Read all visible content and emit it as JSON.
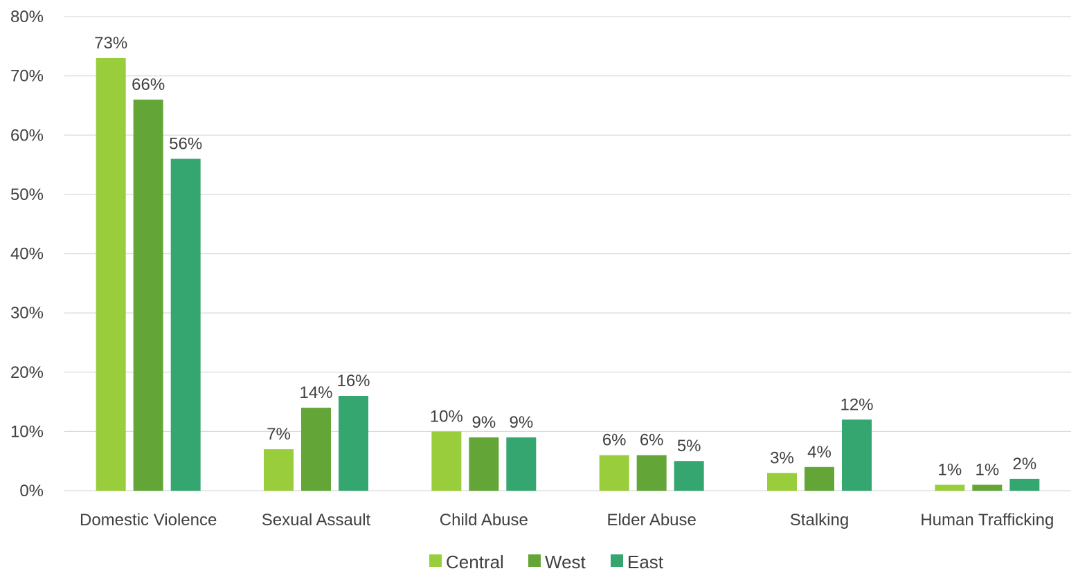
{
  "chart_data": {
    "type": "bar",
    "categories": [
      "Domestic Violence",
      "Sexual Assault",
      "Child Abuse",
      "Elder Abuse",
      "Stalking",
      "Human Trafficking"
    ],
    "series": [
      {
        "name": "Central",
        "color": "#9acd3c",
        "values": [
          73,
          7,
          10,
          6,
          3,
          1
        ],
        "labels": [
          "73%",
          "7%",
          "10%",
          "6%",
          "3%",
          "1%"
        ]
      },
      {
        "name": "West",
        "color": "#63a637",
        "values": [
          66,
          14,
          9,
          6,
          4,
          1
        ],
        "labels": [
          "66%",
          "14%",
          "9%",
          "6%",
          "4%",
          "1%"
        ]
      },
      {
        "name": "East",
        "color": "#35a66f",
        "values": [
          56,
          16,
          9,
          5,
          12,
          2
        ],
        "labels": [
          "56%",
          "16%",
          "9%",
          "5%",
          "12%",
          "2%"
        ]
      }
    ],
    "yticks": [
      "0%",
      "10%",
      "20%",
      "30%",
      "40%",
      "50%",
      "60%",
      "70%",
      "80%"
    ],
    "ylim": [
      0,
      80
    ],
    "ylabel": "",
    "xlabel": "",
    "title": "",
    "grid": true,
    "legend": "bottom-center"
  }
}
